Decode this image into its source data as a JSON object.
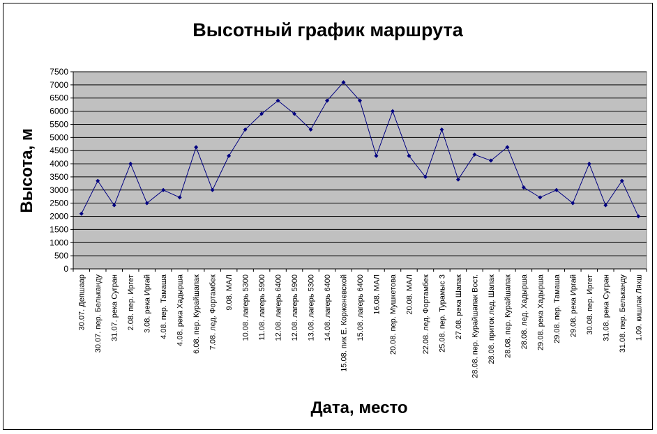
{
  "chart_data": {
    "type": "line",
    "title": "Высотный график маршрута",
    "xlabel": "Дата, место",
    "ylabel": "Высота, м",
    "ylim": [
      0,
      7500
    ],
    "ytick_step": 500,
    "grid": true,
    "colors": {
      "plot_bg": "#c0c0c0",
      "line": "#000080",
      "grid": "#000000"
    },
    "categories": [
      "30.07. Депшаар",
      "30.07. пер. Бельканду",
      "31.07. река Сугран",
      "2.08. пер. Иргет",
      "3.08. река Иргай",
      "4.08. пер. Тамаша",
      "4.08. река Хадырша",
      "6.08. пер. Курайшапак",
      "7.08. лед. Фортамбек",
      "9.08. МАЛ",
      "10.08. лагерь 5300",
      "11.08. лагерь 5900",
      "12.08. лагерь 6400",
      "12.08. лагерь 5900",
      "13.08. лагерь 5300",
      "14.08. лагерь 6400",
      "15.08. пик Е. Корженевской",
      "15.08. лагерь 6400",
      "16.08. МАЛ",
      "20.08. пер. Мушкетова",
      "20.08. МАЛ",
      "22.08. лед. Фортамбек",
      "25.08. пер. Турамыс 3",
      "27.08. река Шапак",
      "28.08. пер. Курайшапак Вост.",
      "28.08. приток лед. Шапак",
      "28.08. пер. Курайшапак",
      "28.08. лед. Хадырша",
      "29.08. река Хадырша",
      "29.08. пер. Тамаша",
      "29.08. река Иргай",
      "30.08. пер. Иргет",
      "31.08. река Сугран",
      "31.08. пер. Бельканду",
      "1.09. кишлак Ляхш"
    ],
    "values": [
      2100,
      3350,
      2420,
      4000,
      2500,
      3000,
      2720,
      4630,
      3000,
      4300,
      5300,
      5900,
      6400,
      5900,
      5300,
      6400,
      7100,
      6400,
      4300,
      6000,
      4300,
      3500,
      5300,
      3400,
      4350,
      4120,
      4630,
      3100,
      2720,
      3000,
      2500,
      4000,
      2420,
      3350,
      2000
    ]
  }
}
